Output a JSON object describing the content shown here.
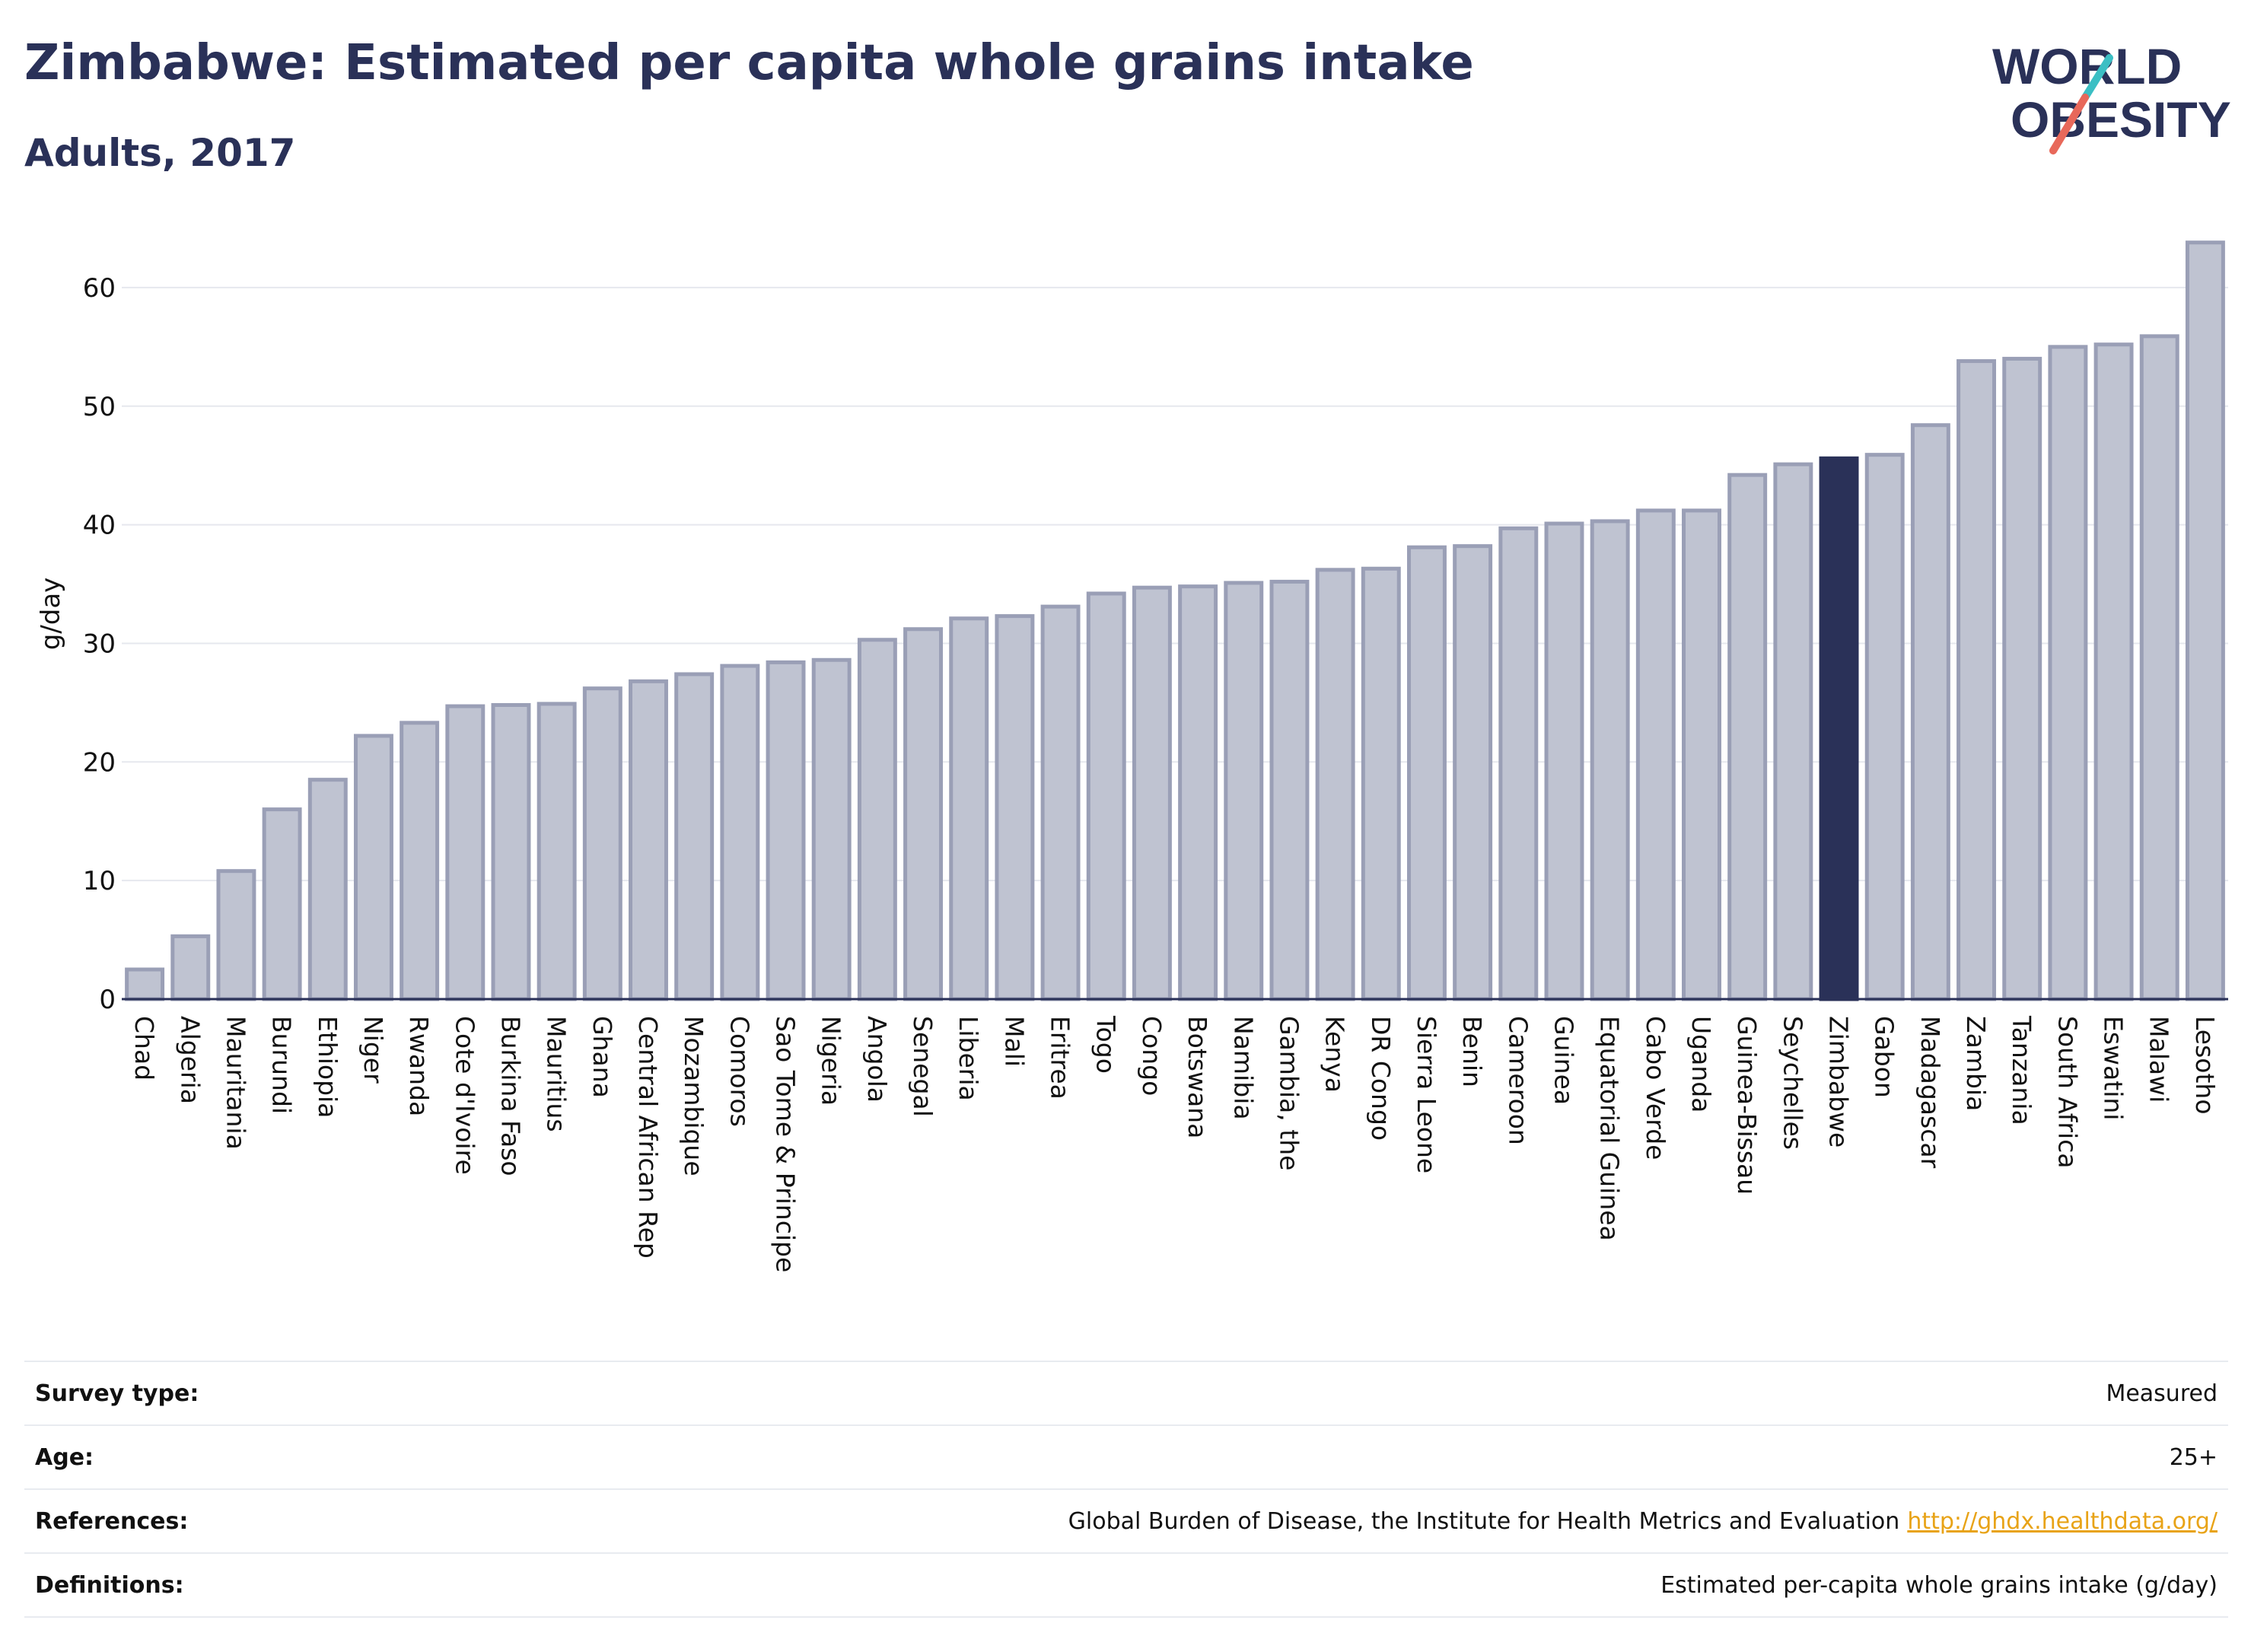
{
  "header": {
    "title": "Zimbabwe: Estimated per capita whole grains intake",
    "subtitle": "Adults, 2017"
  },
  "logo": {
    "line1": "WORLD",
    "line2": "OBESITY",
    "accent_teal": "#3bbfc4",
    "accent_coral": "#e8685a"
  },
  "chart_data": {
    "type": "bar",
    "ylabel": "g/day",
    "ylim": [
      0,
      65
    ],
    "yticks": [
      0,
      10,
      20,
      30,
      40,
      50,
      60
    ],
    "grid": true,
    "highlight": "Zimbabwe",
    "colors": {
      "bar": "#bfc3d1",
      "bar_border": "#9a9fb6",
      "highlight": "#2a3158",
      "axis": "#2a3158",
      "grid": "#e6e8ee"
    },
    "categories": [
      "Chad",
      "Algeria",
      "Mauritania",
      "Burundi",
      "Ethiopia",
      "Niger",
      "Rwanda",
      "Cote d'Ivoire",
      "Burkina Faso",
      "Mauritius",
      "Ghana",
      "Central African Rep",
      "Mozambique",
      "Comoros",
      "Sao Tome & Principe",
      "Nigeria",
      "Angola",
      "Senegal",
      "Liberia",
      "Mali",
      "Eritrea",
      "Togo",
      "Congo",
      "Botswana",
      "Namibia",
      "Gambia, the",
      "Kenya",
      "DR Congo",
      "Sierra Leone",
      "Benin",
      "Cameroon",
      "Guinea",
      "Equatorial Guinea",
      "Cabo Verde",
      "Uganda",
      "Guinea-Bissau",
      "Seychelles",
      "Zimbabwe",
      "Gabon",
      "Madagascar",
      "Zambia",
      "Tanzania",
      "South Africa",
      "Eswatini",
      "Malawi",
      "Lesotho"
    ],
    "values": [
      2.5,
      5.3,
      10.8,
      16.0,
      18.5,
      22.2,
      23.3,
      24.7,
      24.8,
      24.9,
      26.2,
      26.8,
      27.4,
      28.1,
      28.4,
      28.6,
      30.3,
      31.2,
      32.1,
      32.3,
      33.1,
      34.2,
      34.7,
      34.8,
      35.1,
      35.2,
      36.2,
      36.3,
      38.1,
      38.2,
      39.7,
      40.1,
      40.3,
      41.2,
      41.2,
      44.2,
      45.1,
      45.6,
      45.9,
      48.4,
      53.8,
      54.0,
      55.0,
      55.2,
      55.9,
      63.8
    ]
  },
  "info": [
    {
      "label": "Survey type:",
      "value": "Measured"
    },
    {
      "label": "Age:",
      "value": "25+"
    },
    {
      "label": "References:",
      "value": "Global Burden of Disease, the Institute for Health Metrics and Evaluation",
      "link": "http://ghdx.healthdata.org/"
    },
    {
      "label": "Definitions:",
      "value": "Estimated per-capita whole grains intake (g/day)"
    }
  ]
}
